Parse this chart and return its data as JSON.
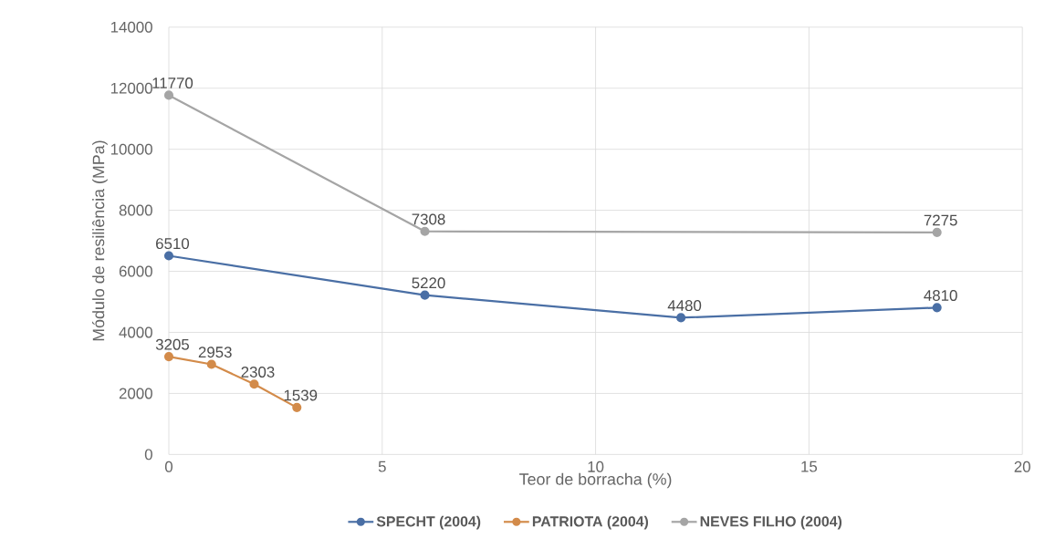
{
  "chart_data": {
    "type": "line",
    "xlabel": "Teor de borracha (%)",
    "ylabel": "Módulo de resiliência (MPa)",
    "xlim": [
      0,
      20
    ],
    "xticks": [
      0,
      5,
      10,
      15,
      20
    ],
    "ylim": [
      0,
      14000
    ],
    "yticks": [
      0,
      2000,
      4000,
      6000,
      8000,
      10000,
      12000,
      14000
    ],
    "grid": true,
    "legend": "bottom",
    "marker": "circle",
    "line_style": "solid",
    "data_labels": true,
    "series": [
      {
        "name": "SPECHT (2004)",
        "color": "#4a6fa5",
        "x": [
          0,
          6,
          12,
          18
        ],
        "values": [
          6510,
          5220,
          4480,
          4810
        ]
      },
      {
        "name": "PATRIOTA (2004)",
        "color": "#d38b4a",
        "x": [
          0,
          1,
          2,
          3
        ],
        "values": [
          3205,
          2953,
          2303,
          1539
        ]
      },
      {
        "name": "NEVES FILHO (2004)",
        "color": "#a5a5a5",
        "x": [
          0,
          6,
          18
        ],
        "values": [
          11770,
          7308,
          7275
        ]
      }
    ]
  }
}
